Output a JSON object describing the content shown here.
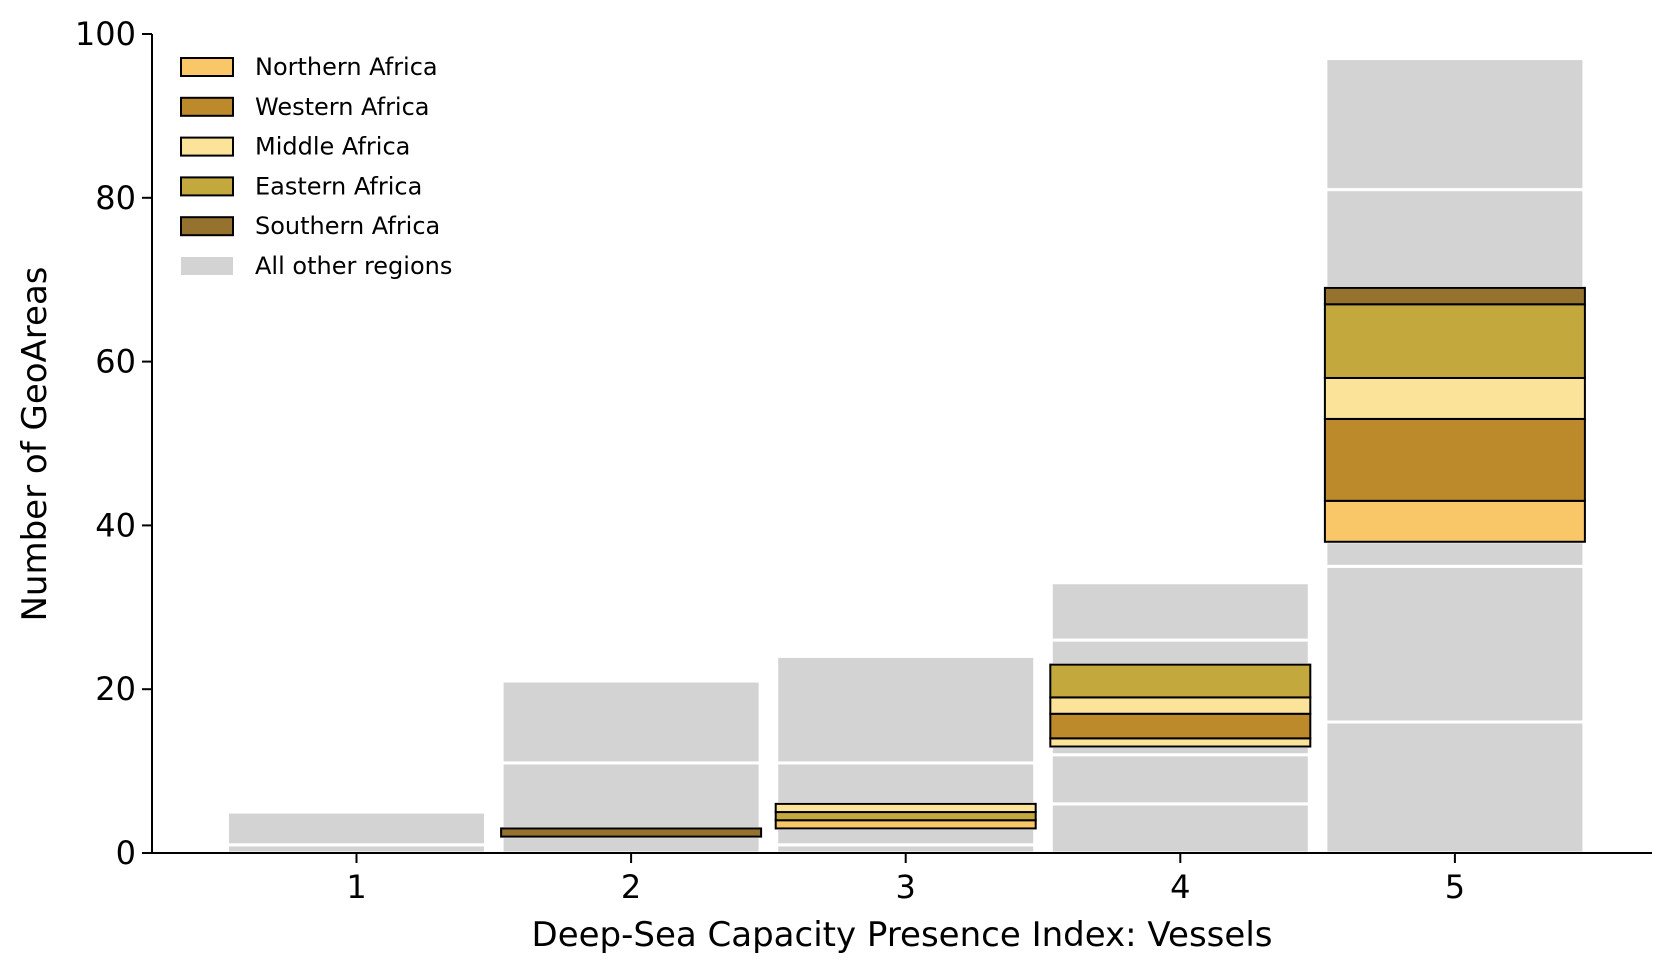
{
  "chart_data": {
    "type": "bar",
    "stacked": true,
    "title": "",
    "xlabel": "Deep-Sea Capacity Presence Index: Vessels",
    "ylabel": "Number of GeoAreas",
    "categories": [
      "1",
      "2",
      "3",
      "4",
      "5"
    ],
    "ylim": [
      0,
      100
    ],
    "yticks": [
      "0",
      "20",
      "40",
      "60",
      "80",
      "100"
    ],
    "grid": false,
    "legend_position": "top-left",
    "legend": [
      {
        "name": "Northern Africa",
        "color": "#F9C668"
      },
      {
        "name": "Western Africa",
        "color": "#BD8A2B"
      },
      {
        "name": "Middle Africa",
        "color": "#FBE399"
      },
      {
        "name": "Eastern Africa",
        "color": "#C3A83E"
      },
      {
        "name": "Southern Africa",
        "color": "#95722D"
      },
      {
        "name": "All other regions",
        "color": "#D3D3D3"
      }
    ],
    "stacks": [
      {
        "category": "1",
        "segments": [
          {
            "region": "All other regions",
            "value": 1
          },
          {
            "region": "All other regions",
            "value": 4
          }
        ]
      },
      {
        "category": "2",
        "segments": [
          {
            "region": "All other regions",
            "value": 2
          },
          {
            "region": "Southern Africa",
            "value": 1
          },
          {
            "region": "All other regions",
            "value": 8
          },
          {
            "region": "All other regions",
            "value": 10
          }
        ]
      },
      {
        "category": "3",
        "segments": [
          {
            "region": "All other regions",
            "value": 1
          },
          {
            "region": "All other regions",
            "value": 2
          },
          {
            "region": "Northern Africa",
            "value": 1
          },
          {
            "region": "Eastern Africa",
            "value": 1
          },
          {
            "region": "Middle Africa",
            "value": 1
          },
          {
            "region": "All other regions",
            "value": 5
          },
          {
            "region": "All other regions",
            "value": 13
          }
        ]
      },
      {
        "category": "4",
        "segments": [
          {
            "region": "All other regions",
            "value": 6
          },
          {
            "region": "All other regions",
            "value": 6
          },
          {
            "region": "All other regions",
            "value": 1
          },
          {
            "region": "Middle Africa",
            "value": 1
          },
          {
            "region": "Western Africa",
            "value": 3
          },
          {
            "region": "Middle Africa",
            "value": 2
          },
          {
            "region": "Eastern Africa",
            "value": 4
          },
          {
            "region": "All other regions",
            "value": 3
          },
          {
            "region": "All other regions",
            "value": 7
          }
        ]
      },
      {
        "category": "5",
        "segments": [
          {
            "region": "All other regions",
            "value": 16
          },
          {
            "region": "All other regions",
            "value": 19
          },
          {
            "region": "All other regions",
            "value": 3
          },
          {
            "region": "Northern Africa",
            "value": 5
          },
          {
            "region": "Western Africa",
            "value": 10
          },
          {
            "region": "Middle Africa",
            "value": 5
          },
          {
            "region": "Eastern Africa",
            "value": 9
          },
          {
            "region": "Southern Africa",
            "value": 2
          },
          {
            "region": "All other regions",
            "value": 12
          },
          {
            "region": "All other regions",
            "value": 16
          }
        ]
      }
    ]
  }
}
